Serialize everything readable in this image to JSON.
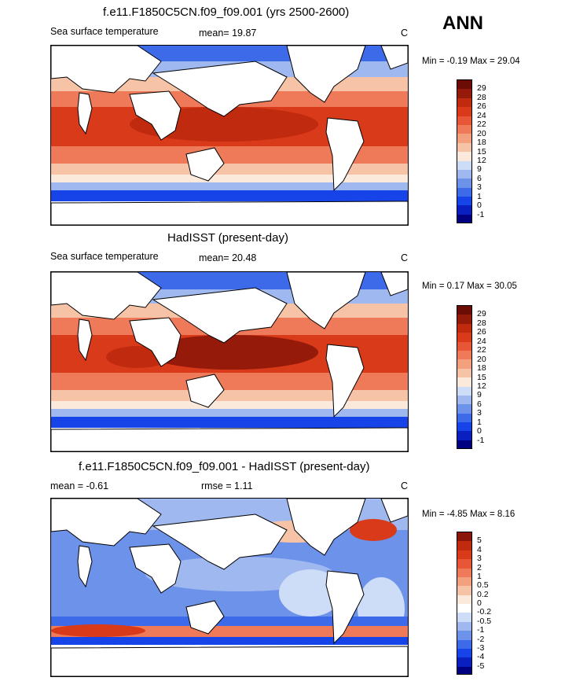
{
  "season": "ANN",
  "panels": [
    {
      "title": "f.e11.F1850C5CN.f09_f09.001 (yrs 2500-2600)",
      "variable": "Sea surface temperature",
      "stat1_label": "mean=",
      "stat1_value": "19.87",
      "stat2_label": "",
      "stat2_value": "",
      "units": "C",
      "min_label": "Min =",
      "min_value": "-0.19",
      "max_label": "Max =",
      "max_value": "29.04",
      "colorbar": [
        "29",
        "28",
        "26",
        "24",
        "22",
        "20",
        "18",
        "15",
        "12",
        "9",
        "6",
        "3",
        "1",
        "0",
        "-1"
      ]
    },
    {
      "title": "HadISST (present-day)",
      "variable": "Sea surface temperature",
      "stat1_label": "mean=",
      "stat1_value": "20.48",
      "stat2_label": "",
      "stat2_value": "",
      "units": "C",
      "min_label": "Min =",
      "min_value": "0.17",
      "max_label": "Max =",
      "max_value": "30.05",
      "colorbar": [
        "29",
        "28",
        "26",
        "24",
        "22",
        "20",
        "18",
        "15",
        "12",
        "9",
        "6",
        "3",
        "1",
        "0",
        "-1"
      ]
    },
    {
      "title": "f.e11.F1850C5CN.f09_f09.001 - HadISST (present-day)",
      "variable": "",
      "stat1_label": "mean =",
      "stat1_value": "-0.61",
      "stat2_label": "rmse =",
      "stat2_value": "1.11",
      "units": "C",
      "min_label": "Min =",
      "min_value": "-4.85",
      "max_label": "Max =",
      "max_value": "8.16",
      "colorbar": [
        "5",
        "4",
        "3",
        "2",
        "1",
        "0.5",
        "0.2",
        "0",
        "-0.2",
        "-0.5",
        "-1",
        "-2",
        "-3",
        "-4",
        "-5"
      ]
    }
  ],
  "colors": {
    "sst_scale": [
      "#000080",
      "#0a1fbf",
      "#1744e8",
      "#3d6ae8",
      "#6d92ea",
      "#9fb8f0",
      "#cddcf7",
      "#fbe9dc",
      "#f7c3a6",
      "#f3a07f",
      "#ee7a59",
      "#e65637",
      "#d93a1a",
      "#c02a0f",
      "#961a0a",
      "#6b0c05"
    ],
    "diff_scale": [
      "#000080",
      "#0a1fbf",
      "#1744e8",
      "#3d6ae8",
      "#6d92ea",
      "#9fb8f0",
      "#cddcf7",
      "#ffffff",
      "#fbe9dc",
      "#f7c3a6",
      "#f3a07f",
      "#ee7a59",
      "#e65637",
      "#d93a1a",
      "#c02a0f",
      "#8a1508"
    ]
  }
}
